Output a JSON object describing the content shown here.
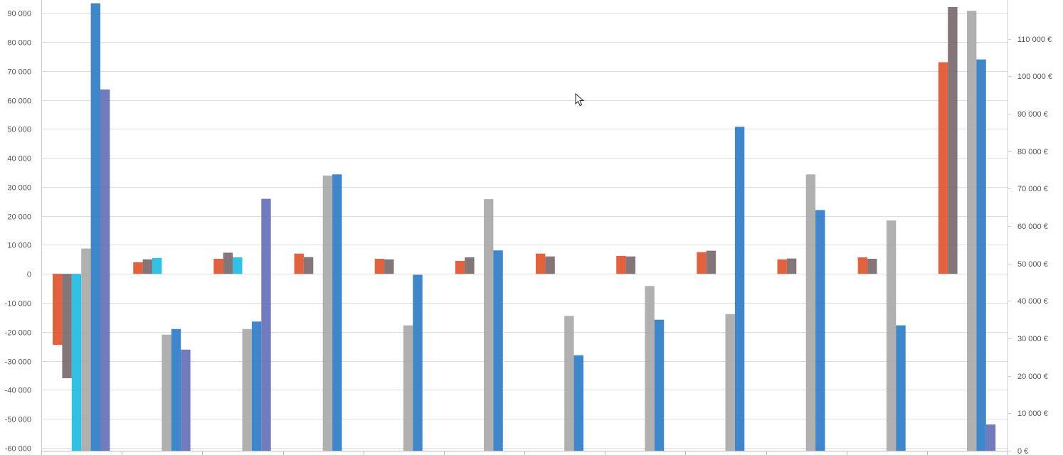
{
  "chart_data": {
    "type": "bar",
    "groups": 12,
    "series_colors": [
      "#E0552F",
      "#7A6A6C",
      "#1FBCE3",
      "#A9A9A9",
      "#2F7CC6",
      "#6670B5"
    ],
    "left_axis": {
      "ylim": [
        -61000,
        92000
      ],
      "ticks": [
        90000,
        80000,
        70000,
        60000,
        50000,
        40000,
        30000,
        20000,
        10000,
        0,
        -10000,
        -20000,
        -30000,
        -40000,
        -50000,
        -60000
      ],
      "tick_labels": [
        "90 000",
        "80 000",
        "70 000",
        "60 000",
        "50 000",
        "40 000",
        "30 000",
        "20 000",
        "10 000",
        "0",
        "-10 000",
        "-20 000",
        "-30 000",
        "-40 000",
        "-50 000",
        "-60 000"
      ]
    },
    "right_axis": {
      "ylim": [
        0,
        120000
      ],
      "ticks": [
        0,
        10000,
        20000,
        30000,
        40000,
        50000,
        60000,
        70000,
        80000,
        90000,
        100000,
        110000
      ],
      "tick_labels": [
        "0 €",
        "10 000 €",
        "20 000 €",
        "30 000 €",
        "40 000 €",
        "50 000 €",
        "60 000 €",
        "70 000 €",
        "80 000 €",
        "90 000 €",
        "100 000 €",
        "110 000 €"
      ]
    },
    "series": [
      {
        "axis": "left",
        "color": "#E0552F",
        "values": [
          -24500,
          4000,
          5200,
          7000,
          5200,
          4500,
          7000,
          6200,
          7500,
          5000,
          5700,
          73000
        ]
      },
      {
        "axis": "left",
        "color": "#7A6A6C",
        "values": [
          -36000,
          5000,
          7300,
          5800,
          5000,
          5700,
          6000,
          6000,
          8000,
          5300,
          5200,
          92000
        ]
      },
      {
        "axis": "left",
        "color": "#1FBCE3",
        "values": [
          -61000,
          5500,
          5700,
          null,
          null,
          null,
          null,
          null,
          null,
          null,
          null,
          null
        ]
      },
      {
        "axis": "right",
        "color": "#A9A9A9",
        "values": [
          54000,
          31000,
          32500,
          73500,
          33500,
          67200,
          36000,
          44000,
          36500,
          73800,
          61500,
          117500
        ]
      },
      {
        "axis": "right",
        "color": "#2F7CC6",
        "values": [
          119500,
          32500,
          34500,
          73800,
          47000,
          53500,
          25500,
          35000,
          86500,
          64300,
          33500,
          104500
        ]
      },
      {
        "axis": "right",
        "color": "#6670B5",
        "values": [
          96500,
          27000,
          67300,
          null,
          null,
          null,
          null,
          null,
          null,
          null,
          null,
          7000
        ]
      }
    ]
  }
}
